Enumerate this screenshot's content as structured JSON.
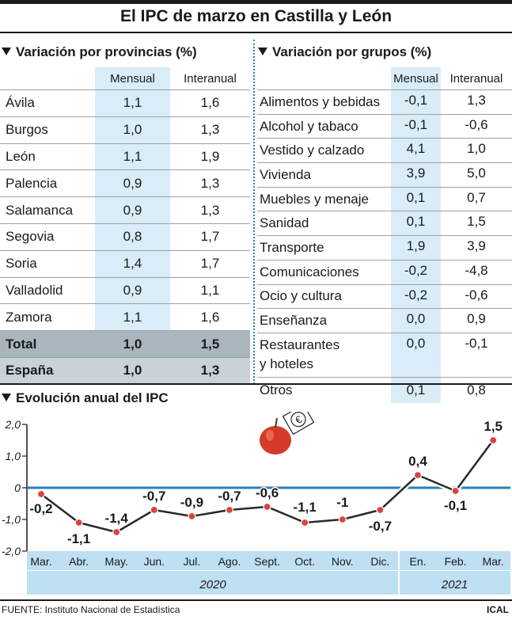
{
  "title": "El IPC de marzo en Castilla y León",
  "provincias": {
    "heading": "Variación por provincias (%)",
    "col_mensual": "Mensual",
    "col_interanual": "Interanual",
    "rows": [
      {
        "name": "Ávila",
        "mensual": "1,1",
        "interanual": "1,6"
      },
      {
        "name": "Burgos",
        "mensual": "1,0",
        "interanual": "1,3"
      },
      {
        "name": "León",
        "mensual": "1,1",
        "interanual": "1,9"
      },
      {
        "name": "Palencia",
        "mensual": "0,9",
        "interanual": "1,3"
      },
      {
        "name": "Salamanca",
        "mensual": "0,9",
        "interanual": "1,3"
      },
      {
        "name": "Segovia",
        "mensual": "0,8",
        "interanual": "1,7"
      },
      {
        "name": "Soria",
        "mensual": "1,4",
        "interanual": "1,7"
      },
      {
        "name": "Valladolid",
        "mensual": "0,9",
        "interanual": "1,1"
      },
      {
        "name": "Zamora",
        "mensual": "1,1",
        "interanual": "1,6"
      },
      {
        "name": "Total",
        "mensual": "1,0",
        "interanual": "1,5"
      },
      {
        "name": "España",
        "mensual": "1,0",
        "interanual": "1,3"
      }
    ]
  },
  "grupos": {
    "heading": "Variación por grupos (%)",
    "col_mensual": "Mensual",
    "col_interanual": "Interanual",
    "rows": [
      {
        "name": "Alimentos y bebidas",
        "mensual": "-0,1",
        "interanual": "1,3"
      },
      {
        "name": "Alcohol y tabaco",
        "mensual": "-0,1",
        "interanual": "-0,6"
      },
      {
        "name": "Vestido y calzado",
        "mensual": "4,1",
        "interanual": "1,0"
      },
      {
        "name": "Vivienda",
        "mensual": "3,9",
        "interanual": "5,0"
      },
      {
        "name": "Muebles y menaje",
        "mensual": "0,1",
        "interanual": "0,7"
      },
      {
        "name": "Sanidad",
        "mensual": "0,1",
        "interanual": "1,5"
      },
      {
        "name": "Transporte",
        "mensual": "1,9",
        "interanual": "3,9"
      },
      {
        "name": "Comunicaciones",
        "mensual": "-0,2",
        "interanual": "-4,8"
      },
      {
        "name": "Ocio y cultura",
        "mensual": "-0,2",
        "interanual": "-0,6"
      },
      {
        "name": "Enseñanza",
        "mensual": "0,0",
        "interanual": "0,9"
      },
      {
        "name": "Restaurantes y hoteles",
        "name_line1": "Restaurantes",
        "name_line2": "y hoteles",
        "mensual": "0,0",
        "interanual": "-0,1"
      },
      {
        "name": "Otros",
        "mensual": "0,1",
        "interanual": "0,8"
      }
    ]
  },
  "chart_heading": "Evolución anual del IPC",
  "chart_data": {
    "type": "line",
    "title": "Evolución anual del IPC",
    "categories": [
      "Mar.",
      "Abr.",
      "May.",
      "Jun.",
      "Jul.",
      "Ago.",
      "Sept.",
      "Oct.",
      "Nov.",
      "Dic.",
      "En.",
      "Feb.",
      "Mar."
    ],
    "values": [
      -0.2,
      -1.1,
      -1.4,
      -0.7,
      -0.9,
      -0.7,
      -0.6,
      -1.1,
      -1.0,
      -0.7,
      0.4,
      -0.1,
      1.5
    ],
    "value_labels": [
      "-0,2",
      "-1,1",
      "-1,4",
      "-0,7",
      "-0,9",
      "-0,7",
      "-0,6",
      "-1,1",
      "-1",
      "-0,7",
      "0,4",
      "-0,1",
      "1,5"
    ],
    "y_ticks": [
      "2,0",
      "1,0",
      "0",
      "-1,0",
      "-2,0"
    ],
    "ylim": [
      -2.0,
      2.0
    ],
    "years": [
      {
        "label": "2020",
        "span": 10
      },
      {
        "label": "2021",
        "span": 3
      }
    ],
    "line_color": "#2a2a2a",
    "marker_color": "#d9443c",
    "zero_line_color": "#2a7fb8",
    "axis_band_color": "#bfdff3",
    "grid": false
  },
  "footer": {
    "source": "FUENTE: Instituto Nacional de Estadística",
    "agency": "ICAL"
  },
  "colors": {
    "accent_blue": "#d9ecf8",
    "total_gray": "#a9b6bd",
    "spain_gray": "#c9d2d7"
  }
}
